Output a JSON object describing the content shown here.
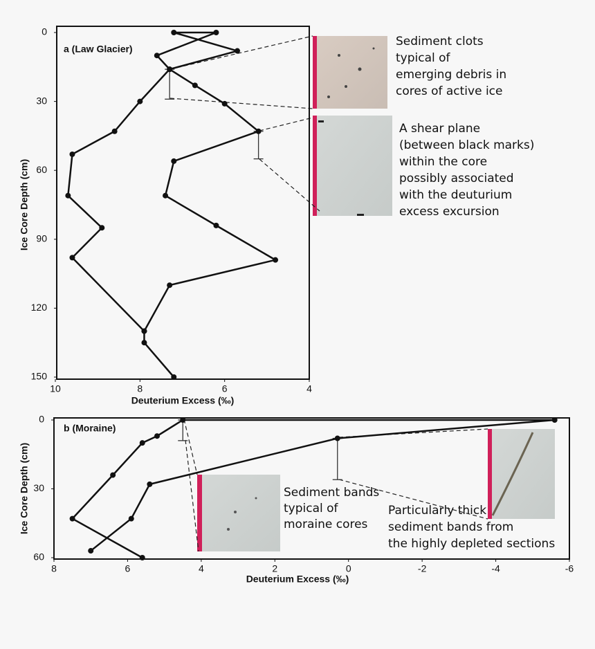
{
  "chart_data": [
    {
      "type": "line",
      "panel_label": "a (Law Glacier)",
      "x_label": "Deuterium Excess (‰)",
      "y_label": "Ice Core Depth (cm)",
      "xlim": [
        10,
        4
      ],
      "xticks": [
        10,
        8,
        6,
        4
      ],
      "ylim": [
        0,
        150
      ],
      "yticks": [
        0,
        30,
        60,
        90,
        120,
        150
      ],
      "color": "#111111",
      "series": [
        {
          "depth": [
            130,
            110,
            99,
            84,
            71,
            56,
            43,
            31,
            23,
            16,
            8,
            0,
            0,
            10,
            16,
            30,
            43,
            53,
            71,
            85,
            98,
            130,
            135,
            150
          ],
          "values": [
            7.9,
            7.3,
            4.8,
            6.2,
            7.4,
            7.2,
            5.2,
            6.0,
            6.7,
            7.3,
            5.7,
            7.2,
            6.2,
            7.6,
            7.3,
            8.0,
            8.6,
            9.6,
            9.7,
            8.9,
            9.6,
            7.9,
            7.9,
            7.2
          ]
        }
      ],
      "depth_bars": [
        {
          "value": 7.3,
          "from": 16,
          "to": 29
        },
        {
          "value": 5.2,
          "from": 43,
          "to": 55
        }
      ],
      "annotations": [
        [
          "Sediment clots",
          "typical of",
          "emerging debris in",
          "cores of active ice"
        ],
        [
          "A shear plane",
          "(between black marks)",
          "within the core",
          "possibly associated",
          "with the deuturium",
          "excess excursion"
        ]
      ]
    },
    {
      "type": "line",
      "panel_label": "b (Moraine)",
      "x_label": "Deuterium Excess (‰)",
      "y_label": "Ice Core Depth (cm)",
      "xlim": [
        8,
        -6
      ],
      "xticks": [
        8,
        6,
        4,
        2,
        0,
        -2,
        -4,
        -6
      ],
      "ylim": [
        0,
        60
      ],
      "yticks": [
        0,
        30,
        60
      ],
      "color": "#111111",
      "series": [
        {
          "depth": [
            57,
            43,
            28,
            8,
            0,
            0,
            7,
            10,
            24,
            43,
            60
          ],
          "values": [
            7.0,
            5.9,
            5.4,
            0.3,
            -5.6,
            4.5,
            5.2,
            5.6,
            6.4,
            7.5,
            5.6
          ]
        }
      ],
      "depth_bars": [
        {
          "value": 4.5,
          "from": 0,
          "to": 9
        },
        {
          "value": 0.3,
          "from": 8,
          "to": 26
        }
      ],
      "annotations": [
        [
          "Sediment bands",
          "typical of",
          "moraine cores"
        ],
        [
          "Particularly thick",
          "sediment bands from",
          "the highly depleted sections"
        ]
      ]
    }
  ]
}
